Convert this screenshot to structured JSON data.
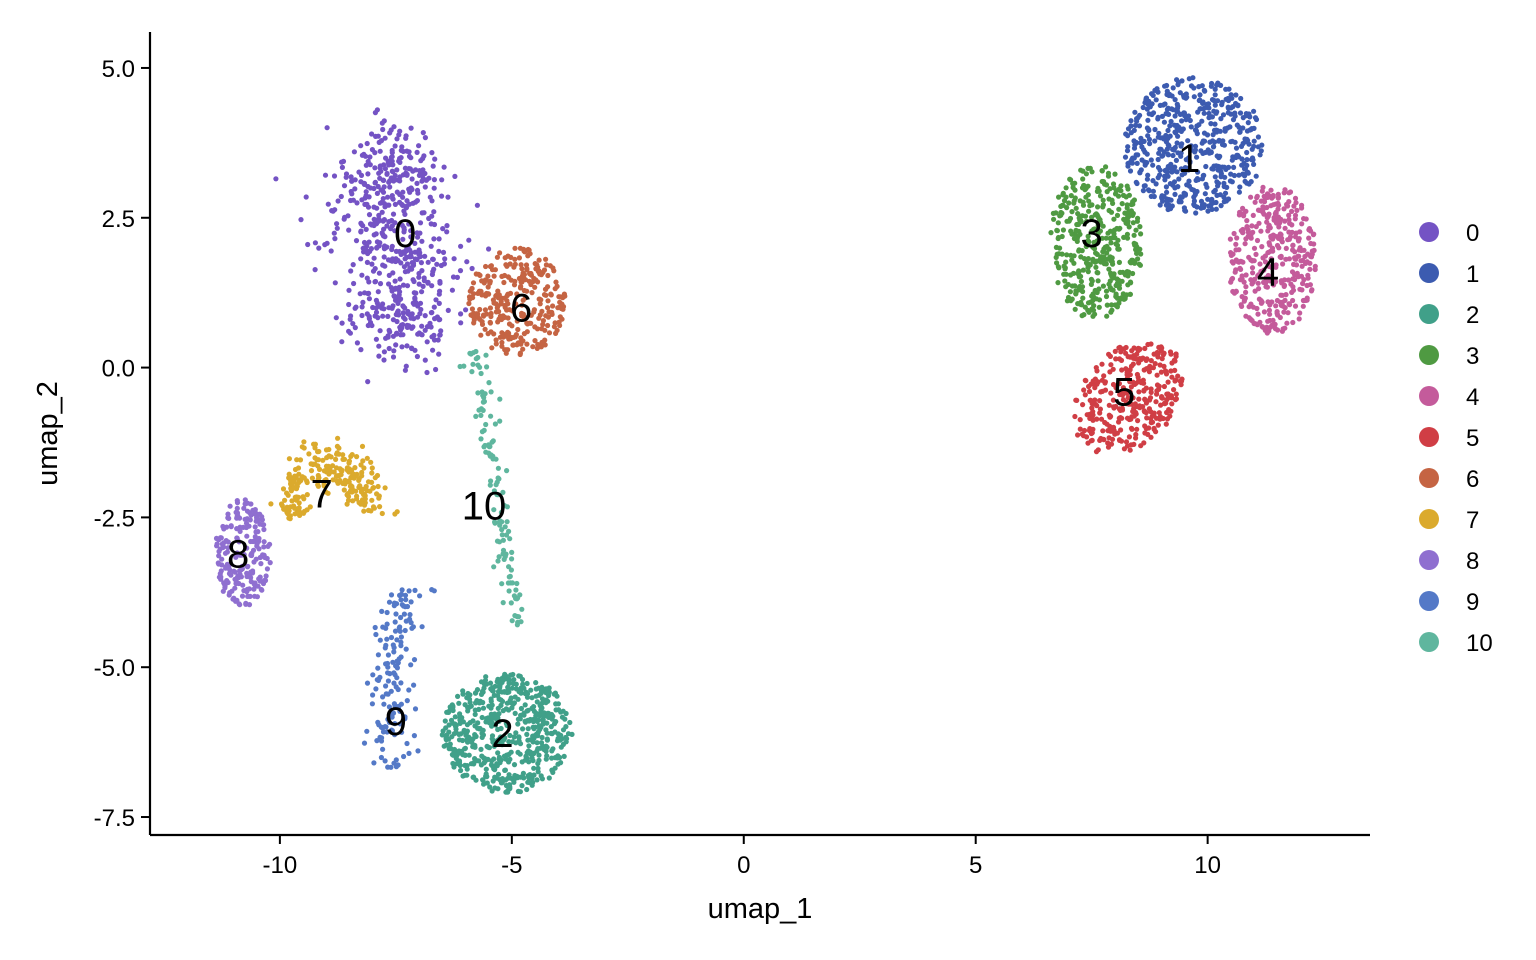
{
  "chart_data": {
    "type": "scatter",
    "title": "",
    "xlabel": "umap_1",
    "ylabel": "umap_2",
    "xlim": [
      -12.8,
      13.5
    ],
    "ylim": [
      -7.8,
      5.6
    ],
    "x_ticks": [
      -10,
      -5,
      0,
      5,
      10
    ],
    "x_tick_labels": [
      "-10",
      "-5",
      "0",
      "5",
      "10"
    ],
    "y_ticks": [
      5.0,
      2.5,
      0.0,
      -2.5,
      -5.0,
      -7.5
    ],
    "y_tick_labels": [
      "5.0",
      "2.5",
      "0.0",
      "-2.5",
      "-5.0",
      "-7.5"
    ],
    "grid": false,
    "legend_position": "right",
    "clusters": [
      {
        "name": "0",
        "color": "#7453C4",
        "label_x": -7.3,
        "label_y": 2.25,
        "points": 600
      },
      {
        "name": "1",
        "color": "#3C5BB0",
        "label_x": 9.6,
        "label_y": 3.5,
        "points": 520
      },
      {
        "name": "2",
        "color": "#40A089",
        "label_x": -5.2,
        "label_y": -6.1,
        "points": 560
      },
      {
        "name": "3",
        "color": "#4F9A42",
        "label_x": 7.5,
        "label_y": 2.25,
        "points": 400
      },
      {
        "name": "4",
        "color": "#C45B9B",
        "label_x": 11.3,
        "label_y": 1.6,
        "points": 380
      },
      {
        "name": "5",
        "color": "#D03E45",
        "label_x": 8.2,
        "label_y": -0.4,
        "points": 330
      },
      {
        "name": "6",
        "color": "#C56443",
        "label_x": -4.8,
        "label_y": 1.0,
        "points": 300
      },
      {
        "name": "7",
        "color": "#DBAA2D",
        "label_x": -9.1,
        "label_y": -2.1,
        "points": 240
      },
      {
        "name": "8",
        "color": "#8F6FD0",
        "label_x": -10.9,
        "label_y": -3.1,
        "points": 200
      },
      {
        "name": "9",
        "color": "#5479C7",
        "label_x": -7.5,
        "label_y": -5.9,
        "points": 150
      },
      {
        "name": "10",
        "color": "#5FB69E",
        "label_x": -5.6,
        "label_y": -2.3,
        "points": 120
      }
    ]
  }
}
